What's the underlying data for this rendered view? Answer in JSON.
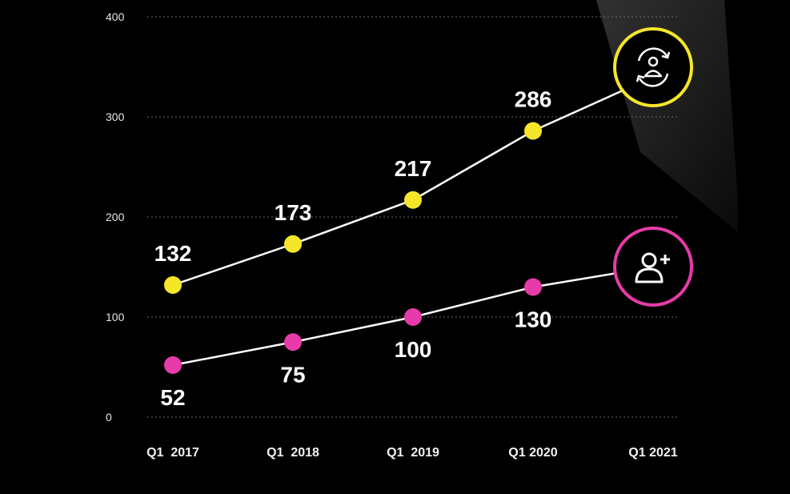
{
  "colors": {
    "background": "#000000",
    "series_a": "#f5e62a",
    "series_b": "#e63ba8",
    "line": "#ffffff",
    "grid": "#6a6a6a"
  },
  "chart_data": {
    "type": "line",
    "x": [
      "Q1  2017",
      "Q1  2018",
      "Q1  2019",
      "Q1 2020",
      "Q1 2021"
    ],
    "ylim": [
      0,
      400
    ],
    "yticks": [
      0,
      100,
      200,
      300,
      400
    ],
    "grid": true,
    "series": [
      {
        "name": "Yellow series",
        "color": "#f5e62a",
        "values": [
          132,
          173,
          217,
          286,
          340
        ],
        "labels": [
          "132",
          "173",
          "217",
          "286",
          ""
        ],
        "end_icon": "rotating-user-icon"
      },
      {
        "name": "Pink series",
        "color": "#e63ba8",
        "values": [
          52,
          75,
          100,
          130,
          150
        ],
        "labels": [
          "52",
          "75",
          "100",
          "130",
          ""
        ],
        "end_icon": "add-user-icon"
      }
    ]
  }
}
